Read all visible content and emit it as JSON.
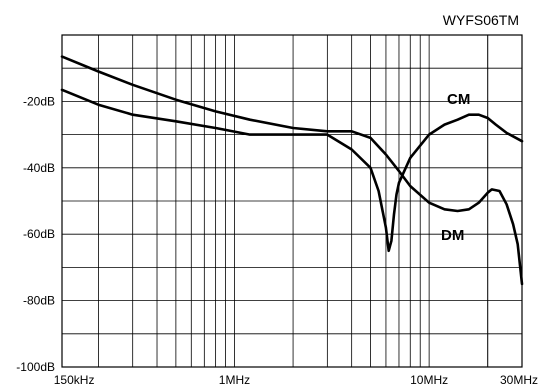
{
  "chart_data": {
    "type": "line",
    "title": "WYFS06TM",
    "xscale": "log",
    "xlim_hz": [
      130000,
      30000000
    ],
    "ylim_db": [
      -100,
      0
    ],
    "grid": true,
    "x_ticks": [
      {
        "value": 150000,
        "label": "150kHz"
      },
      {
        "value": 1000000,
        "label": "1MHz"
      },
      {
        "value": 10000000,
        "label": "10MHz"
      },
      {
        "value": 30000000,
        "label": "30MHz"
      }
    ],
    "y_ticks": [
      {
        "value": -20,
        "label": "-20dB"
      },
      {
        "value": -40,
        "label": "-40dB"
      },
      {
        "value": -60,
        "label": "-60dB"
      },
      {
        "value": -80,
        "label": "-80dB"
      },
      {
        "value": -100,
        "label": "-100dB"
      }
    ],
    "series": [
      {
        "name": "CM",
        "x": [
          130000,
          200000,
          300000,
          500000,
          800000,
          1200000,
          2000000,
          3000000,
          4000000,
          5000000,
          5500000,
          6000000,
          6200000,
          6400000,
          6600000,
          6800000,
          7000000,
          8000000,
          10000000,
          12000000,
          14000000,
          16000000,
          18000000,
          20000000,
          22000000,
          25000000,
          30000000
        ],
        "y": [
          -16.5,
          -21,
          -24,
          -26,
          -28,
          -30,
          -30,
          -30,
          -34.5,
          -40,
          -47,
          -58,
          -65,
          -62,
          -54,
          -48,
          -44.5,
          -37,
          -30,
          -27,
          -25.5,
          -24,
          -24,
          -25,
          -27,
          -29.5,
          -32
        ]
      },
      {
        "name": "DM",
        "x": [
          130000,
          200000,
          300000,
          500000,
          800000,
          1200000,
          2000000,
          3000000,
          4000000,
          5000000,
          6000000,
          7000000,
          8000000,
          10000000,
          12000000,
          14000000,
          16000000,
          18000000,
          20000000,
          21000000,
          23000000,
          25000000,
          27000000,
          28500000,
          30000000
        ],
        "y": [
          -6.5,
          -11,
          -15,
          -19.5,
          -23,
          -25.5,
          -28,
          -29,
          -29,
          -31,
          -36,
          -41,
          -45.5,
          -50.5,
          -52.5,
          -53,
          -52.5,
          -50.5,
          -47.5,
          -46.5,
          -47,
          -51,
          -57,
          -63,
          -75
        ]
      }
    ]
  }
}
